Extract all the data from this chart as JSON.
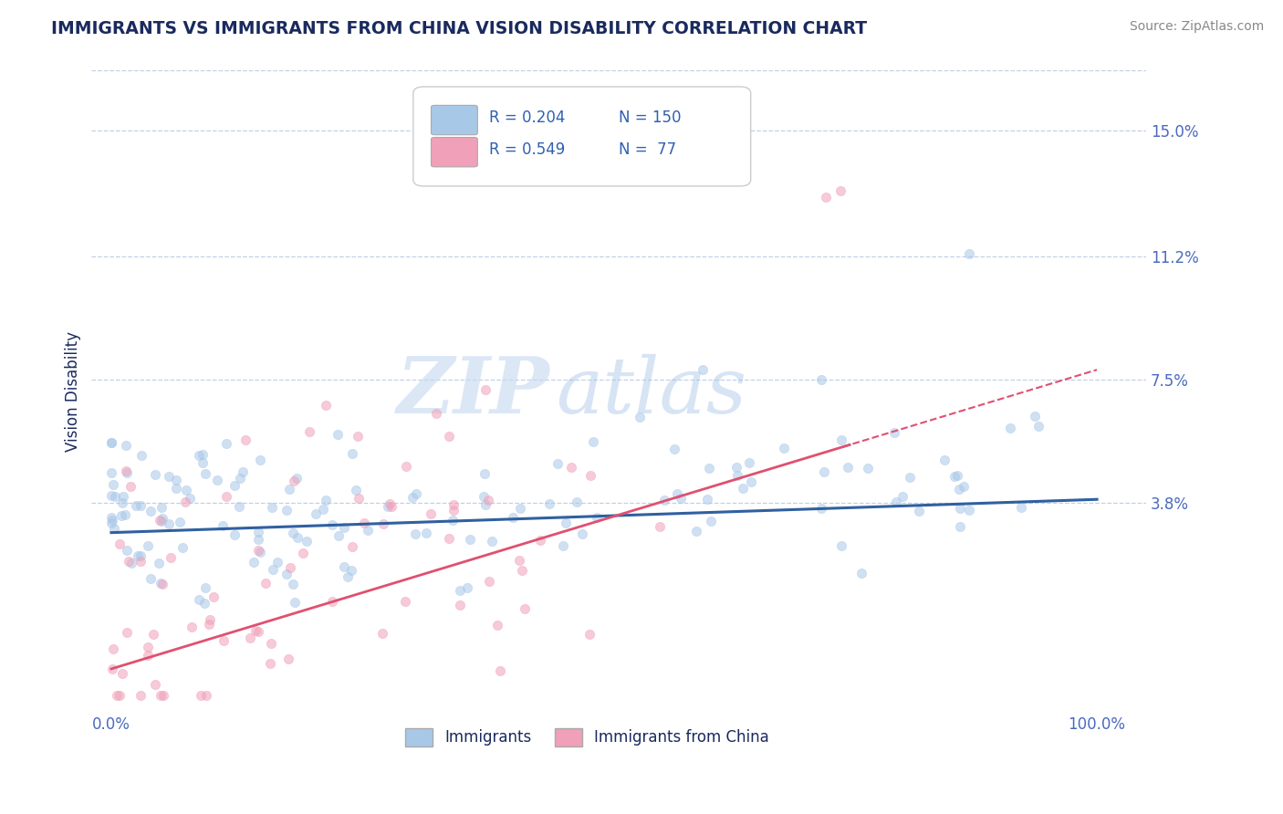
{
  "title": "IMMIGRANTS VS IMMIGRANTS FROM CHINA VISION DISABILITY CORRELATION CHART",
  "source": "Source: ZipAtlas.com",
  "ylabel": "Vision Disability",
  "R_blue": 0.204,
  "N_blue": 150,
  "R_pink": 0.549,
  "N_pink": 77,
  "blue_color": "#a8c8e8",
  "pink_color": "#f0a0b8",
  "blue_line_color": "#3060a0",
  "pink_line_color": "#e05070",
  "yticks": [
    0.038,
    0.075,
    0.112,
    0.15
  ],
  "ytick_labels": [
    "3.8%",
    "7.5%",
    "11.2%",
    "15.0%"
  ],
  "xlim": [
    -0.02,
    1.05
  ],
  "ylim": [
    -0.025,
    0.168
  ],
  "watermark_zip": "ZIP",
  "watermark_atlas": "atlas",
  "background_color": "#ffffff",
  "title_color": "#1a2a5e",
  "axis_label_color": "#1a2a5e",
  "tick_color": "#4a6abf",
  "grid_color": "#c0d0e8",
  "legend_r_color": "#3060b0",
  "title_fontsize": 13.5,
  "dot_size": 55,
  "dot_alpha": 0.55
}
